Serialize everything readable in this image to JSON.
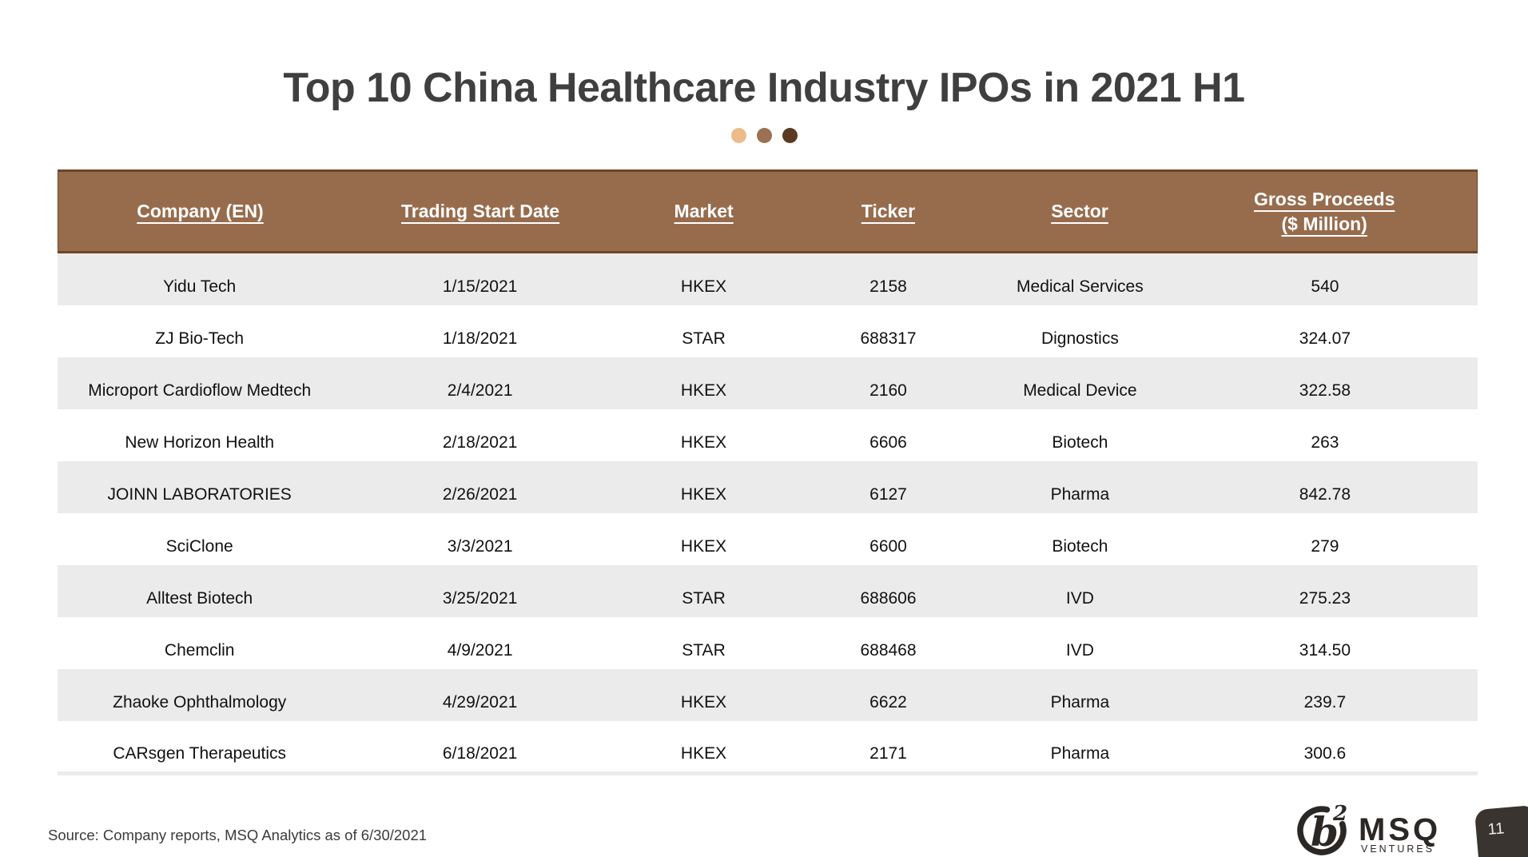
{
  "slide": {
    "title": "Top 10 China Healthcare Industry IPOs in 2021 H1",
    "source_note": "Source: Company reports, MSQ Analytics as of 6/30/2021",
    "page_number": "11"
  },
  "theme": {
    "title_text": "#3F3F3F",
    "header_bg": "#976C4D",
    "header_border": "#6F4524",
    "header_text": "#FFFFFF",
    "row_bg": "#FFFFFF",
    "row_alt_bg": "#EBEBEB",
    "body_text": "#111111",
    "badge_bg": "#3A3430",
    "badge_text": "#EFE9E3",
    "logo_color": "#2B2725",
    "accent_dots": [
      "#EDBA8A",
      "#9B7053",
      "#5C3A22"
    ]
  },
  "logo": {
    "mark_base": "b",
    "mark_exp": "2",
    "name": "MSQ",
    "sub": "VENTURES"
  },
  "table": {
    "columns": [
      {
        "key": "company",
        "label": "Company (EN)"
      },
      {
        "key": "date",
        "label": "Trading Start Date"
      },
      {
        "key": "market",
        "label": "Market"
      },
      {
        "key": "ticker",
        "label": "Ticker"
      },
      {
        "key": "sector",
        "label": "Sector"
      },
      {
        "key": "proceeds",
        "label": "Gross Proceeds",
        "label2": "($ Million)"
      }
    ],
    "rows": [
      {
        "company": "Yidu Tech",
        "date": "1/15/2021",
        "market": "HKEX",
        "ticker": "2158",
        "sector": "Medical Services",
        "proceeds": "540"
      },
      {
        "company": "ZJ Bio-Tech",
        "date": "1/18/2021",
        "market": "STAR",
        "ticker": "688317",
        "sector": "Dignostics",
        "proceeds": "324.07"
      },
      {
        "company": "Microport Cardioflow Medtech",
        "date": "2/4/2021",
        "market": "HKEX",
        "ticker": "2160",
        "sector": "Medical Device",
        "proceeds": "322.58"
      },
      {
        "company": "New Horizon Health",
        "date": "2/18/2021",
        "market": "HKEX",
        "ticker": "6606",
        "sector": "Biotech",
        "proceeds": "263"
      },
      {
        "company": "JOINN LABORATORIES",
        "date": "2/26/2021",
        "market": "HKEX",
        "ticker": "6127",
        "sector": "Pharma",
        "proceeds": "842.78"
      },
      {
        "company": "SciClone",
        "date": "3/3/2021",
        "market": "HKEX",
        "ticker": "6600",
        "sector": "Biotech",
        "proceeds": "279"
      },
      {
        "company": "Alltest Biotech",
        "date": "3/25/2021",
        "market": "STAR",
        "ticker": "688606",
        "sector": "IVD",
        "proceeds": "275.23"
      },
      {
        "company": "Chemclin",
        "date": "4/9/2021",
        "market": "STAR",
        "ticker": "688468",
        "sector": "IVD",
        "proceeds": "314.50"
      },
      {
        "company": "Zhaoke Ophthalmology",
        "date": "4/29/2021",
        "market": "HKEX",
        "ticker": "6622",
        "sector": "Pharma",
        "proceeds": "239.7"
      },
      {
        "company": "CARsgen Therapeutics",
        "date": "6/18/2021",
        "market": "HKEX",
        "ticker": "2171",
        "sector": "Pharma",
        "proceeds": "300.6"
      }
    ]
  }
}
